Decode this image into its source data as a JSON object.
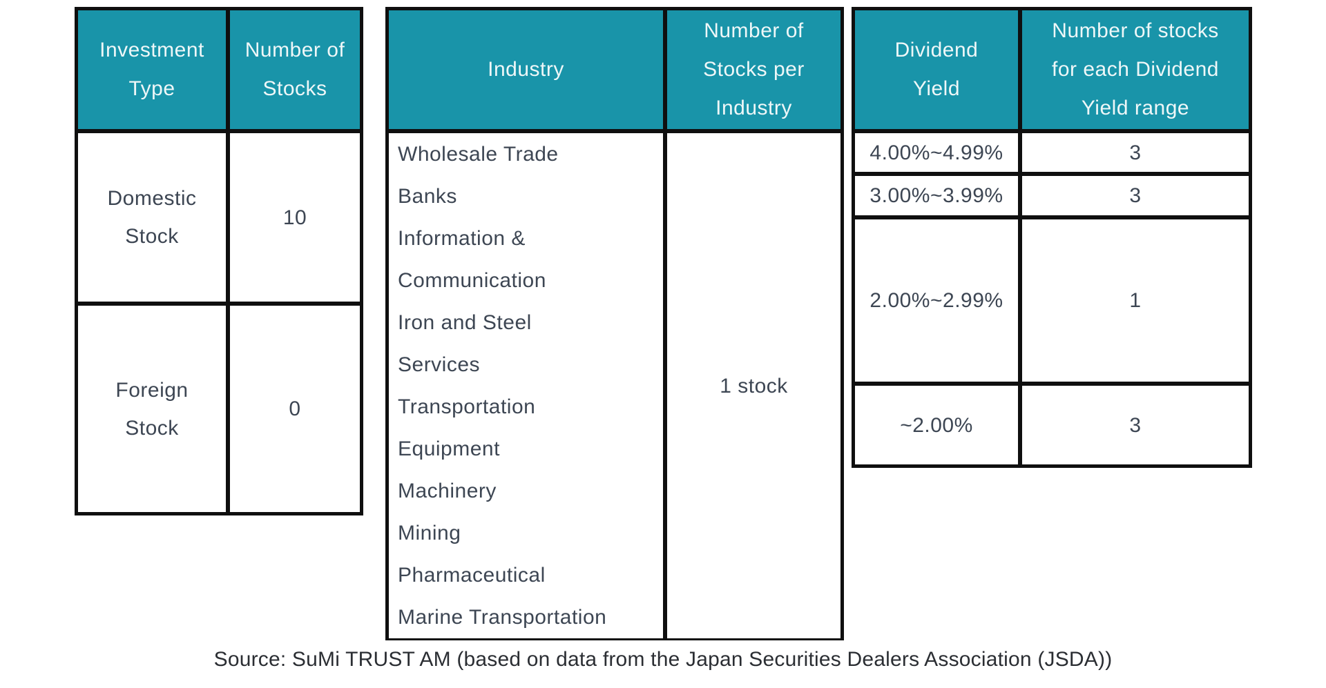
{
  "colors": {
    "header_bg": "#1994a9",
    "header_text": "#eef7f8",
    "grid_line": "#0f0f0f",
    "cell_text": "#3d4653",
    "source_text": "#2b2e33"
  },
  "tables": {
    "investment": {
      "headers": [
        "Investment\nType",
        "Number of\nStocks"
      ],
      "rows": [
        {
          "type": "Domestic\nStock",
          "count": "10"
        },
        {
          "type": "Foreign\nStock",
          "count": "0"
        }
      ]
    },
    "industry": {
      "headers": [
        "Industry",
        "Number of\nStocks per\nIndustry"
      ],
      "industries_display": "Wholesale Trade\nBanks\nInformation &\nCommunication\nIron and Steel\nServices\nTransportation\nEquipment\nMachinery\nMining\nPharmaceutical\nMarine Transportation",
      "industries": [
        "Wholesale Trade",
        "Banks",
        "Information & Communication",
        "Iron and Steel",
        "Services",
        "Transportation Equipment",
        "Machinery",
        "Mining",
        "Pharmaceutical",
        "Marine Transportation"
      ],
      "stocks_per_industry": "1 stock"
    },
    "dividend": {
      "headers": [
        "Dividend\nYield",
        "Number of stocks\nfor each Dividend\nYield range"
      ],
      "rows": [
        {
          "range": "4.00%~4.99%",
          "count": "3"
        },
        {
          "range": "3.00%~3.99%",
          "count": "3"
        },
        {
          "range": "2.00%~2.99%",
          "count": "1"
        },
        {
          "range": "~2.00%",
          "count": "3"
        }
      ]
    }
  },
  "source": "Source: SuMi TRUST AM (based on data from the Japan Securities Dealers Association (JSDA))"
}
